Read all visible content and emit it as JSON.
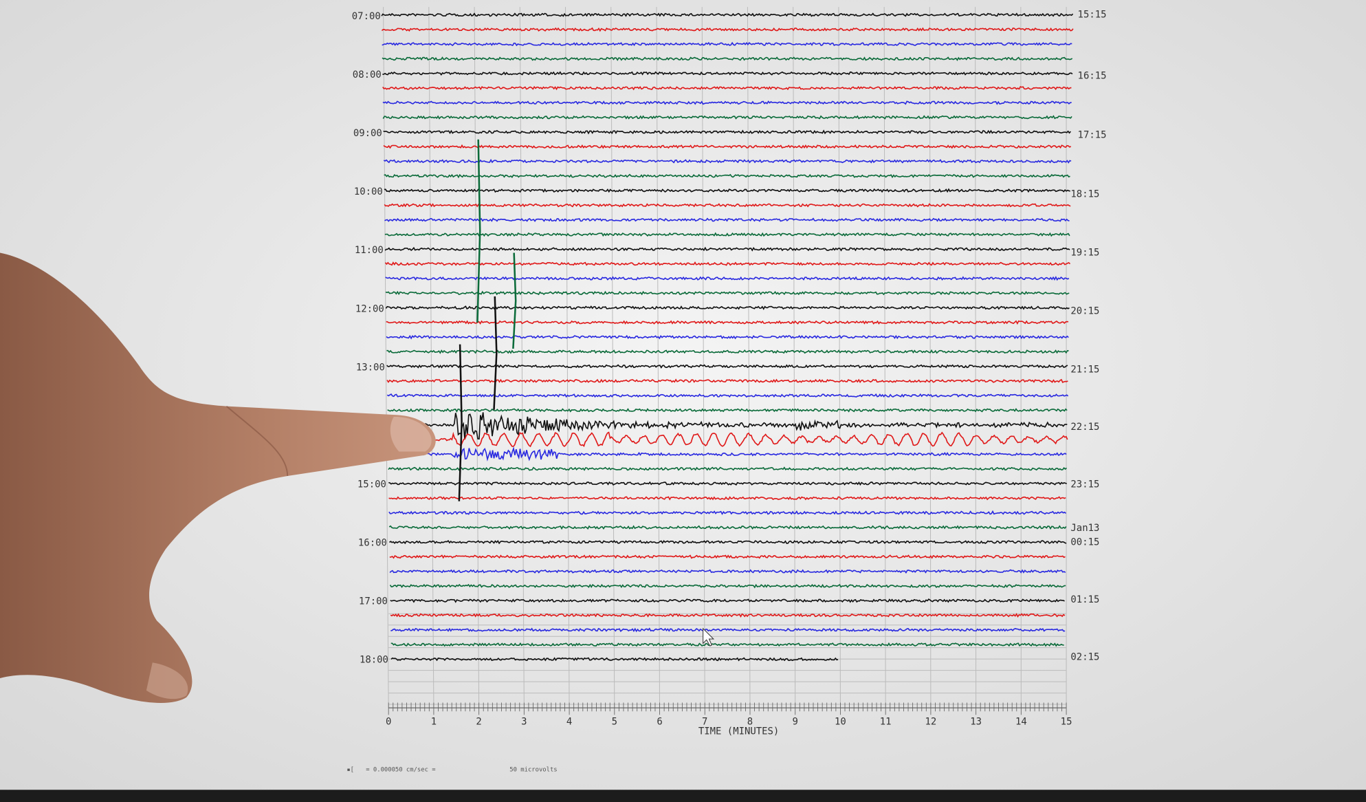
{
  "left_labels": [
    "07:00",
    "08:00",
    "09:00",
    "10:00",
    "11:00",
    "12:00",
    "13:00",
    "15:00",
    "16:00",
    "17:00",
    "18:00"
  ],
  "right_labels": [
    "15:15",
    "16:15",
    "17:15",
    "18:15",
    "19:15",
    "20:15",
    "21:15",
    "22:15",
    "23:15",
    "Jan13",
    "00:15",
    "01:15",
    "02:15"
  ],
  "x_ticks": [
    "0",
    "1",
    "2",
    "3",
    "4",
    "5",
    "6",
    "7",
    "8",
    "9",
    "10",
    "11",
    "12",
    "13",
    "14",
    "15"
  ],
  "x_axis_label": "TIME (MINUTES)",
  "scale_note": "= 0.000050 cm/sec =",
  "scale_note_units": "50 microvolts"
}
